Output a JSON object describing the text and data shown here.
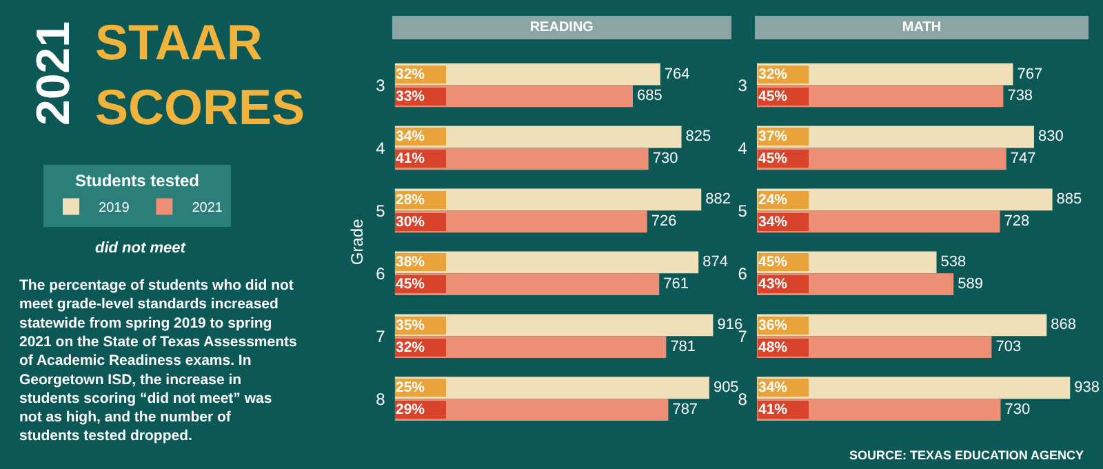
{
  "chart_data": [
    {
      "type": "other",
      "title": "2021 STAAR SCORES",
      "subtitle": "The percentage of students who did not meet grade-level standards increased statewide from spring 2019 to spring 2021 on the State of Texas Assessments of Academic Readiness exams. In Georgetown ISD, the increase in students scoring “did not meet” was not as high, and the number of students tested dropped.",
      "annotations": [
        "SOURCE: TEXAS EDUCATION AGENCY"
      ]
    },
    {
      "type": "bar",
      "orientation": "horizontal",
      "title": "READING",
      "ylabel": "Grade",
      "legend_title": "Students tested",
      "legend": "left",
      "categories": [
        "3",
        "4",
        "5",
        "6",
        "7",
        "8"
      ],
      "tick_labels": "y",
      "data_labels": true,
      "series": [
        {
          "name": "2019",
          "color": "#efe0b9",
          "values": [
            764,
            825,
            882,
            874,
            916,
            905
          ]
        },
        {
          "name": "2021",
          "color": "#ec8f74",
          "values": [
            685,
            730,
            726,
            761,
            781,
            787
          ]
        }
      ],
      "annotations": [
        "did not meet",
        {
          "text": "32%",
          "y": "3"
        },
        {
          "text": "33%",
          "y": "3"
        },
        {
          "text": "34%",
          "y": "4"
        },
        {
          "text": "41%",
          "y": "4"
        },
        {
          "text": "28%",
          "y": "5"
        },
        {
          "text": "30%",
          "y": "5"
        },
        {
          "text": "38%",
          "y": "6"
        },
        {
          "text": "45%",
          "y": "6"
        },
        {
          "text": "35%",
          "y": "7"
        },
        {
          "text": "32%",
          "y": "7"
        },
        {
          "text": "25%",
          "y": "8"
        },
        {
          "text": "29%",
          "y": "8"
        }
      ]
    },
    {
      "type": "bar",
      "orientation": "horizontal",
      "title": "MATH",
      "categories": [
        "3",
        "4",
        "5",
        "6",
        "7",
        "8"
      ],
      "tick_labels": "y",
      "data_labels": true,
      "series": [
        {
          "color": "#efe0b9",
          "values": [
            767,
            830,
            885,
            538,
            868,
            938
          ]
        },
        {
          "color": "#ec8f74",
          "values": [
            738,
            747,
            728,
            589,
            703,
            730
          ]
        }
      ],
      "annotations": [
        {
          "text": "32%",
          "y": "3"
        },
        {
          "text": "45%",
          "y": "3"
        },
        {
          "text": "37%",
          "y": "4"
        },
        {
          "text": "45%",
          "y": "4"
        },
        {
          "text": "24%",
          "y": "5"
        },
        {
          "text": "34%",
          "y": "5"
        },
        {
          "text": "45%",
          "y": "6"
        },
        {
          "text": "43%",
          "y": "6"
        },
        {
          "text": "36%",
          "y": "7"
        },
        {
          "text": "48%",
          "y": "7"
        },
        {
          "text": "34%",
          "y": "8"
        },
        {
          "text": "41%",
          "y": "8"
        }
      ]
    }
  ]
}
